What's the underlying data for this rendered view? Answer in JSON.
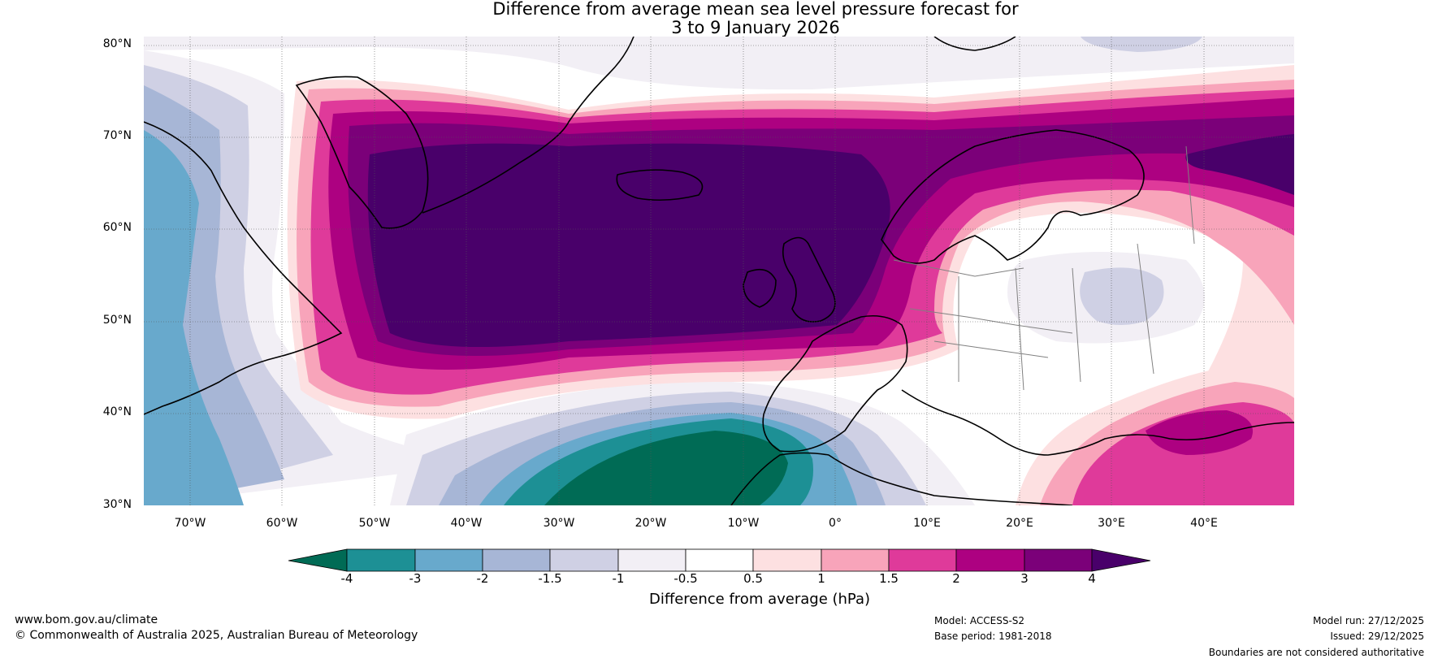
{
  "title": {
    "line1": "Difference from average mean sea level pressure forecast for",
    "line2": "3 to 9 January 2026"
  },
  "map": {
    "lat_labels": [
      "80°N",
      "70°N",
      "60°N",
      "50°N",
      "40°N",
      "30°N"
    ],
    "lon_labels": [
      "70°W",
      "60°W",
      "50°W",
      "40°W",
      "30°W",
      "20°W",
      "10°W",
      "0°",
      "10°E",
      "20°E",
      "30°E",
      "40°E"
    ],
    "colors": {
      "m4": "#006b55",
      "m3": "#1d9095",
      "m2": "#68a9cc",
      "m15": "#a7b6d6",
      "m1": "#cfd0e4",
      "m05": "#f2eff5",
      "z": "#ffffff",
      "p05": "#fde0e1",
      "p1": "#f8a4ba",
      "p15": "#df3a9a",
      "p2": "#ad0181",
      "p3": "#7b0079",
      "p4": "#49006a",
      "coast": "#000000",
      "border": "#808080",
      "grid": "#555555"
    }
  },
  "colorbar": {
    "ticks": [
      "-4",
      "-3",
      "-2",
      "-1.5",
      "-1",
      "-0.5",
      "0.5",
      "1",
      "1.5",
      "2",
      "3",
      "4"
    ],
    "title": "Difference from average (hPa)"
  },
  "footer": {
    "website": "www.bom.gov.au/climate",
    "copyright": "© Commonwealth of Australia 2025, Australian Bureau of Meteorology",
    "model": "Model: ACCESS-S2",
    "base_period": "Base period: 1981-2018",
    "model_run": "Model run: 27/12/2025",
    "issued": "Issued: 29/12/2025",
    "disclaimer": "Boundaries are not considered authoritative"
  }
}
